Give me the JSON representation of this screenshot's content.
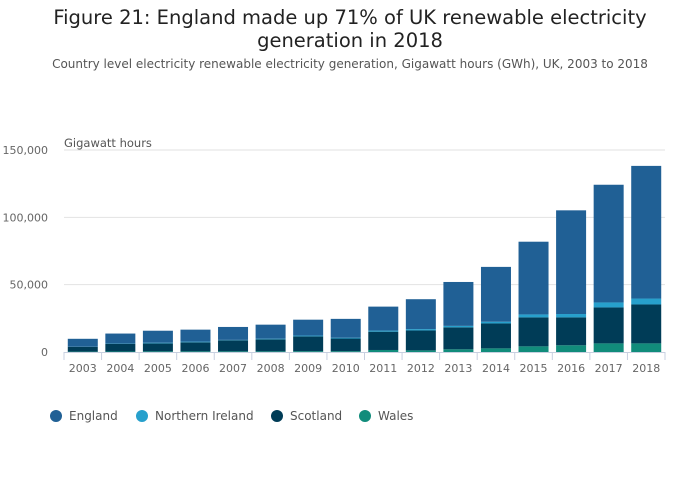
{
  "chart_data": {
    "type": "bar",
    "stacked": true,
    "title": "Figure 21: England made up 71% of UK renewable electricity generation in 2018",
    "subtitle": "Country level electricity renewable electricity generation, Gigawatt hours (GWh), UK, 2003 to 2018",
    "ylabel": "Gigawatt hours",
    "xlabel": "",
    "ylim": [
      0,
      150000
    ],
    "yticks": [
      "0",
      "50,000",
      "100,000",
      "150,000"
    ],
    "ytick_values": [
      0,
      50000,
      100000,
      150000
    ],
    "grid": true,
    "legend_position": "bottom",
    "categories": [
      "2003",
      "2004",
      "2005",
      "2006",
      "2007",
      "2008",
      "2009",
      "2010",
      "2011",
      "2012",
      "2013",
      "2014",
      "2015",
      "2016",
      "2017",
      "2018"
    ],
    "series": [
      {
        "name": "Wales",
        "color": "#118c7b",
        "values": [
          300,
          400,
          500,
          500,
          500,
          500,
          600,
          600,
          1500,
          1200,
          2000,
          2700,
          4200,
          5000,
          6400,
          6400
        ]
      },
      {
        "name": "Scotland",
        "color": "#003c57",
        "values": [
          3500,
          5700,
          5900,
          6700,
          8200,
          8900,
          11000,
          9400,
          13600,
          14800,
          16300,
          18500,
          21500,
          20700,
          26700,
          28900
        ]
      },
      {
        "name": "Northern Ireland",
        "color": "#27a0cc",
        "values": [
          100,
          200,
          500,
          500,
          300,
          500,
          600,
          600,
          800,
          1000,
          1100,
          1300,
          2200,
          2500,
          3700,
          4400
        ]
      },
      {
        "name": "England",
        "color": "#206095",
        "values": [
          5900,
          7400,
          8900,
          8900,
          9600,
          10400,
          11800,
          14000,
          17800,
          22200,
          32600,
          40700,
          54000,
          77000,
          87400,
          98500
        ]
      }
    ],
    "legend_order": [
      "England",
      "Northern Ireland",
      "Scotland",
      "Wales"
    ]
  }
}
